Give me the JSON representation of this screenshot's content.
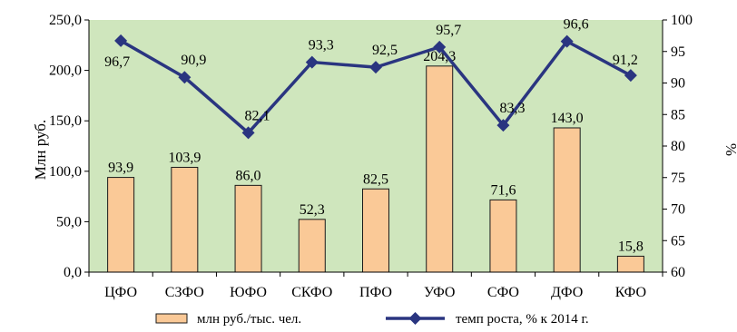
{
  "chart_data": {
    "type": "bar",
    "categories": [
      "ЦФО",
      "СЗФО",
      "ЮФО",
      "СКФО",
      "ПФО",
      "УФО",
      "СФО",
      "ДФО",
      "КФО"
    ],
    "series": [
      {
        "name": "млн руб./тыс. чел.",
        "kind": "bar",
        "axis": "left",
        "values": [
          93.9,
          103.9,
          86.0,
          52.3,
          82.5,
          204.3,
          71.6,
          143.0,
          15.8
        ],
        "labels": [
          "93,9",
          "103,9",
          "86,0",
          "52,3",
          "82,5",
          "204,3",
          "71,6",
          "143,0",
          "15,8"
        ],
        "color": "#FAC997"
      },
      {
        "name": "темп роста, % к  2014 г.",
        "kind": "line",
        "axis": "right",
        "values": [
          96.7,
          90.9,
          82.1,
          93.3,
          92.5,
          95.7,
          83.3,
          96.6,
          91.2
        ],
        "labels": [
          "96,7",
          "90,9",
          "82,1",
          "93,3",
          "92,5",
          "95,7",
          "83,3",
          "96,6",
          "91,2"
        ],
        "color": "#2A3580"
      }
    ],
    "ylabel": "Млн руб.",
    "y2label": "%",
    "ylim": [
      0,
      250
    ],
    "y2lim": [
      60,
      100
    ],
    "yticks": [
      "0,0",
      "50,0",
      "100,0",
      "150,0",
      "200,0",
      "250,0"
    ],
    "y2ticks": [
      "60",
      "65",
      "70",
      "75",
      "80",
      "85",
      "90",
      "95",
      "100"
    ],
    "legend_position": "bottom",
    "plot_background": "#CFE6BD",
    "grid": false
  }
}
